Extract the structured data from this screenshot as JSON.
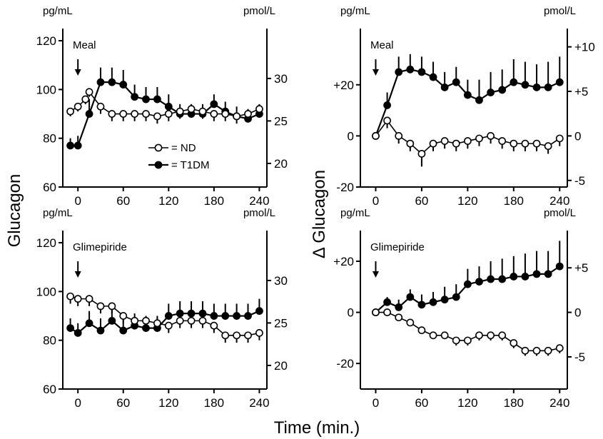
{
  "figure": {
    "y_label_left": "Glucagon",
    "y_label_right": "Δ Glucagon",
    "x_label": "Time (min.)"
  },
  "legend": {
    "nd": "= ND",
    "t1dm": "= T1DM"
  },
  "chart_data": [
    {
      "type": "line",
      "unit_left": "pg/mL",
      "unit_right": "pmol/L",
      "annotation": "Meal",
      "annotation_x": 0,
      "xlim": [
        -20,
        250
      ],
      "x_ticks": [
        0,
        60,
        120,
        180,
        240
      ],
      "ylim": [
        60,
        125
      ],
      "y_ticks": [
        60,
        80,
        100,
        120
      ],
      "y_ticks_right": [
        20,
        25,
        30
      ],
      "right_per_left": 0.287,
      "series": [
        {
          "name": "ND",
          "marker": "open",
          "x": [
            -10,
            0,
            10,
            15,
            30,
            45,
            60,
            75,
            90,
            105,
            120,
            135,
            150,
            165,
            180,
            195,
            210,
            225,
            240
          ],
          "y": [
            91,
            93,
            96,
            99,
            93,
            90,
            90,
            90,
            90,
            89,
            90,
            91,
            92,
            91,
            90,
            90,
            89,
            90,
            92
          ],
          "err": [
            2,
            2,
            2,
            2,
            3,
            3,
            3,
            3,
            3,
            3,
            3,
            3,
            3,
            3,
            3,
            3,
            3,
            3,
            3
          ]
        },
        {
          "name": "T1DM",
          "marker": "filled",
          "x": [
            -10,
            0,
            15,
            30,
            45,
            60,
            75,
            90,
            105,
            120,
            135,
            150,
            165,
            180,
            195,
            210,
            225,
            240
          ],
          "y": [
            77,
            77,
            90,
            103,
            103,
            102,
            97,
            96,
            96,
            93,
            90,
            90,
            90,
            94,
            91,
            89,
            88,
            90
          ],
          "err": [
            3,
            4,
            6,
            6,
            6,
            6,
            5,
            5,
            5,
            5,
            4,
            4,
            4,
            4,
            4,
            4,
            4,
            4
          ]
        }
      ]
    },
    {
      "type": "line",
      "unit_left": "pg/mL",
      "unit_right": "pmol/L",
      "annotation": "Meal",
      "annotation_x": 0,
      "xlim": [
        -20,
        250
      ],
      "x_ticks": [
        0,
        60,
        120,
        180,
        240
      ],
      "ylim": [
        -20,
        42
      ],
      "y_ticks": [
        -20,
        0,
        20
      ],
      "y_tick_labels": [
        "-20",
        "0",
        "+20"
      ],
      "y_ticks_right": [
        -5,
        0,
        5,
        10
      ],
      "y_tick_labels_right": [
        "-5",
        "0",
        "+5",
        "+10"
      ],
      "right_per_left": 0.287,
      "series": [
        {
          "name": "ND",
          "marker": "open",
          "x": [
            0,
            15,
            30,
            45,
            60,
            75,
            90,
            105,
            120,
            135,
            150,
            165,
            180,
            195,
            210,
            225,
            240
          ],
          "y": [
            0,
            6,
            0,
            -3,
            -7,
            -3,
            -2,
            -3,
            -2,
            -1,
            0,
            -2,
            -3,
            -3,
            -3,
            -4,
            -1
          ],
          "err": [
            0,
            3,
            3,
            3,
            5,
            3,
            3,
            3,
            3,
            3,
            3,
            3,
            3,
            3,
            3,
            3,
            3
          ]
        },
        {
          "name": "T1DM",
          "marker": "filled",
          "x": [
            0,
            15,
            30,
            45,
            60,
            75,
            90,
            105,
            120,
            135,
            150,
            165,
            180,
            195,
            210,
            225,
            240
          ],
          "y": [
            0,
            12,
            25,
            26,
            25,
            23,
            19,
            21,
            16,
            14,
            17,
            18,
            21,
            20,
            19,
            19,
            21
          ],
          "err": [
            0,
            5,
            6,
            6,
            6,
            6,
            6,
            6,
            6,
            8,
            8,
            8,
            9,
            9,
            9,
            10,
            10
          ]
        }
      ]
    },
    {
      "type": "line",
      "unit_left": "pg/mL",
      "unit_right": "pmol/L",
      "annotation": "Glimepiride",
      "annotation_x": 0,
      "xlim": [
        -20,
        250
      ],
      "x_ticks": [
        0,
        60,
        120,
        180,
        240
      ],
      "ylim": [
        60,
        125
      ],
      "y_ticks": [
        60,
        80,
        100,
        120
      ],
      "y_ticks_right": [
        20,
        25,
        30
      ],
      "right_per_left": 0.287,
      "series": [
        {
          "name": "ND",
          "marker": "open",
          "x": [
            -10,
            0,
            15,
            30,
            45,
            60,
            75,
            90,
            105,
            120,
            135,
            150,
            165,
            180,
            195,
            210,
            225,
            240
          ],
          "y": [
            98,
            97,
            97,
            94,
            94,
            90,
            88,
            88,
            87,
            86,
            88,
            88,
            88,
            86,
            82,
            82,
            82,
            83
          ],
          "err": [
            3,
            3,
            3,
            3,
            3,
            3,
            3,
            3,
            3,
            3,
            3,
            3,
            3,
            3,
            3,
            3,
            3,
            3
          ]
        },
        {
          "name": "T1DM",
          "marker": "filled",
          "x": [
            -10,
            0,
            15,
            30,
            45,
            60,
            75,
            90,
            105,
            120,
            135,
            150,
            165,
            180,
            195,
            210,
            225,
            240
          ],
          "y": [
            85,
            83,
            87,
            84,
            88,
            84,
            86,
            85,
            85,
            90,
            91,
            91,
            91,
            90,
            90,
            90,
            90,
            92
          ],
          "err": [
            4,
            4,
            5,
            5,
            5,
            5,
            5,
            5,
            5,
            5,
            5,
            5,
            5,
            5,
            5,
            5,
            5,
            5
          ]
        }
      ]
    },
    {
      "type": "line",
      "unit_left": "pg/mL",
      "unit_right": "pmol/L",
      "annotation": "Glimepiride",
      "annotation_x": 0,
      "xlim": [
        -20,
        250
      ],
      "x_ticks": [
        0,
        60,
        120,
        180,
        240
      ],
      "ylim": [
        -30,
        32
      ],
      "y_ticks": [
        -20,
        0,
        20
      ],
      "y_tick_labels": [
        "-20",
        "0",
        "+20"
      ],
      "y_ticks_right": [
        -5,
        0,
        5
      ],
      "y_tick_labels_right": [
        "-5",
        "0",
        "+5"
      ],
      "right_per_left": 0.287,
      "series": [
        {
          "name": "ND",
          "marker": "open",
          "x": [
            0,
            15,
            30,
            45,
            60,
            75,
            90,
            105,
            120,
            135,
            150,
            165,
            180,
            195,
            210,
            225,
            240
          ],
          "y": [
            0,
            0,
            -2,
            -4,
            -7,
            -9,
            -9,
            -11,
            -11,
            -9,
            -9,
            -9,
            -12,
            -15,
            -15,
            -15,
            -14
          ],
          "err": [
            0,
            1,
            1,
            1,
            1,
            1,
            1,
            2,
            2,
            2,
            2,
            2,
            2,
            2,
            2,
            2,
            2
          ]
        },
        {
          "name": "T1DM",
          "marker": "filled",
          "x": [
            0,
            15,
            30,
            45,
            60,
            75,
            90,
            105,
            120,
            135,
            150,
            165,
            180,
            195,
            210,
            225,
            240
          ],
          "y": [
            0,
            4,
            2,
            6,
            3,
            4,
            5,
            6,
            11,
            12,
            13,
            13,
            14,
            14,
            15,
            15,
            18
          ],
          "err": [
            0,
            2,
            3,
            3,
            4,
            4,
            5,
            5,
            6,
            6,
            7,
            8,
            8,
            9,
            9,
            9,
            10
          ]
        }
      ]
    }
  ]
}
